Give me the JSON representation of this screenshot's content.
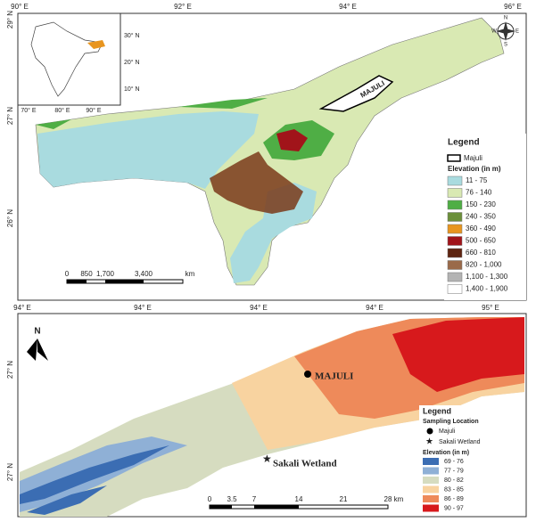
{
  "top_map": {
    "x_labels": [
      "90° E",
      "92° E",
      "94° E",
      "96° E"
    ],
    "y_labels": [
      "29° N",
      "27° N",
      "26° N"
    ],
    "inset_x_labels": [
      "70° E",
      "80° E",
      "90° E"
    ],
    "inset_y_labels": [
      "30° N",
      "20° N",
      "10° N"
    ],
    "area_label": "MAJULI",
    "compass": [
      "N",
      "S",
      "E",
      "W"
    ],
    "legend": {
      "title": "Legend",
      "outline_label": "Majuli",
      "subtitle": "Elevation (in m)",
      "classes": [
        {
          "label": "11 - 75",
          "color": "#a9dbdf"
        },
        {
          "label": "76 - 140",
          "color": "#d9e9b3"
        },
        {
          "label": "150 - 230",
          "color": "#4fae45"
        },
        {
          "label": "240 - 350",
          "color": "#6b8f3a"
        },
        {
          "label": "360 - 490",
          "color": "#e8951f"
        },
        {
          "label": "500 - 650",
          "color": "#a1141a"
        },
        {
          "label": "660 - 810",
          "color": "#5e2410"
        },
        {
          "label": "820 - 1,000",
          "color": "#9a6a4a"
        },
        {
          "label": "1,100 - 1,300",
          "color": "#b3b3b3"
        },
        {
          "label": "1,400 - 1,900",
          "color": "#ffffff"
        }
      ]
    },
    "scale": [
      "0",
      "850",
      "1,700",
      "3,400",
      "km"
    ]
  },
  "bottom_map": {
    "x_labels": [
      "94° E",
      "94° E",
      "94° E",
      "94° E",
      "95° E"
    ],
    "y_labels": [
      "27° N",
      "27° N"
    ],
    "north": "N",
    "point_labels": [
      "MAJULI",
      "Sakali Wetland"
    ],
    "legend": {
      "title": "Legend",
      "subtitle_points": "Sampling Location",
      "points": [
        "Majuli",
        "Sakali Wetland"
      ],
      "subtitle": "Elevation (in m)",
      "classes": [
        {
          "label": "69 - 76",
          "color": "#3b6db3"
        },
        {
          "label": "77 - 79",
          "color": "#8fb0d6"
        },
        {
          "label": "80 - 82",
          "color": "#d6dcc0"
        },
        {
          "label": "83 - 85",
          "color": "#f8d3a0"
        },
        {
          "label": "86 - 89",
          "color": "#ee8a5a"
        },
        {
          "label": "90 - 97",
          "color": "#d7191c"
        }
      ]
    },
    "scale": [
      "0",
      "3.5",
      "7",
      "14",
      "21",
      "28",
      "km"
    ]
  }
}
